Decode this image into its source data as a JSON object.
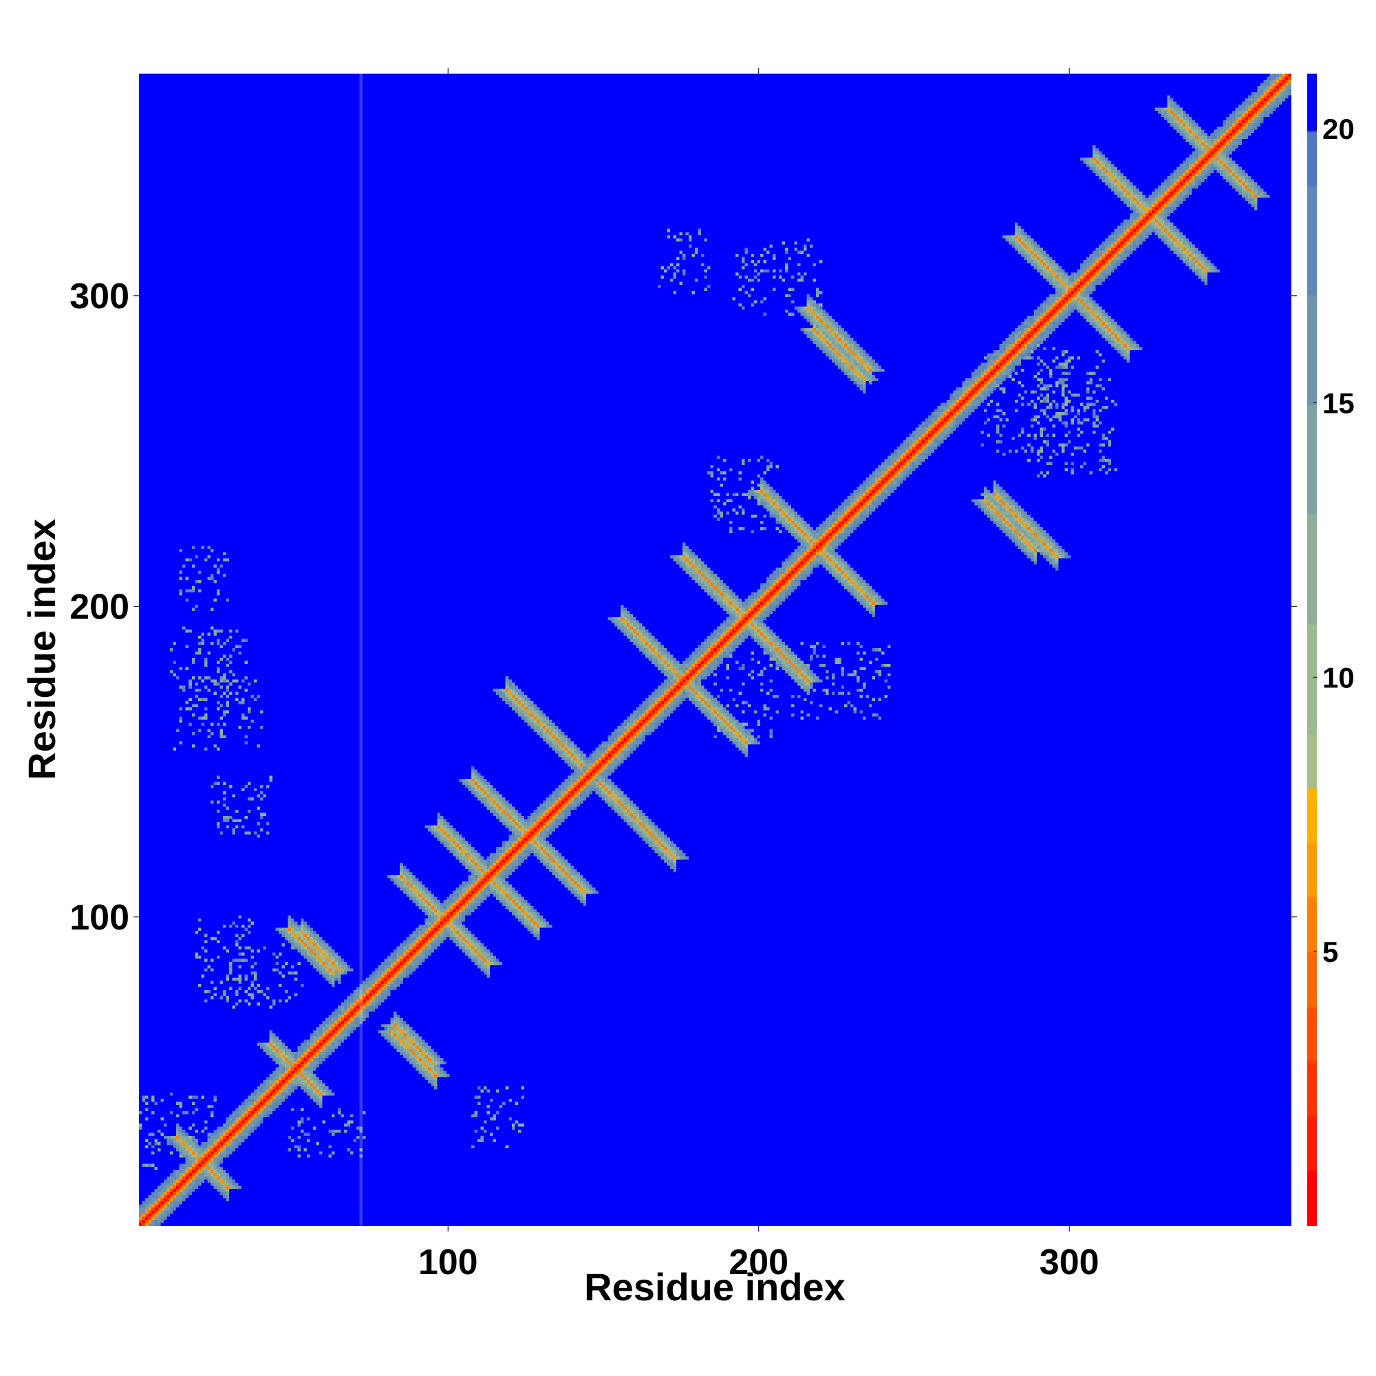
{
  "chart_data": {
    "type": "heatmap",
    "title": "",
    "xlabel": "Residue index",
    "ylabel": "Residue index",
    "xlim": [
      1,
      371
    ],
    "ylim": [
      1,
      371
    ],
    "xticks": [
      100,
      200,
      300
    ],
    "yticks": [
      100,
      200,
      300
    ],
    "xtick_labels": [
      "100",
      "200",
      "300"
    ],
    "ytick_labels": [
      "100",
      "200",
      "300"
    ],
    "colorbar": {
      "range": [
        0,
        21
      ],
      "ticks": [
        5,
        10,
        15,
        20
      ],
      "tick_labels": [
        "5",
        "10",
        "15",
        "20"
      ],
      "levels": [
        {
          "max": 1,
          "color": "#ff0000"
        },
        {
          "max": 2,
          "color": "#ff1a00"
        },
        {
          "max": 3,
          "color": "#ff3300"
        },
        {
          "max": 4,
          "color": "#ff4d00"
        },
        {
          "max": 5,
          "color": "#ff6600"
        },
        {
          "max": 6,
          "color": "#ff8000"
        },
        {
          "max": 7,
          "color": "#ff9a00"
        },
        {
          "max": 8,
          "color": "#ffb000"
        },
        {
          "max": 9,
          "color": "#a9bf8a"
        },
        {
          "max": 11,
          "color": "#9cb98f"
        },
        {
          "max": 13,
          "color": "#8eae98"
        },
        {
          "max": 15,
          "color": "#7fa2a3"
        },
        {
          "max": 17,
          "color": "#6f95ae"
        },
        {
          "max": 19,
          "color": "#5f87b9"
        },
        {
          "max": 20,
          "color": "#4f78c4"
        },
        {
          "max": 21,
          "color": "#0000ff"
        }
      ]
    },
    "background_color": "#0000ff",
    "highlight_line_x": 72,
    "description_of_pattern": {
      "diagonal": "distance 0 along i=j",
      "antiparallel_pairs": [
        {
          "center": [
            18,
            22
          ],
          "half_length": 6
        },
        {
          "center": [
            50,
            50
          ],
          "half_length": 8
        },
        {
          "center": [
            55,
            88
          ],
          "half_length": 7
        },
        {
          "center": [
            88,
            58
          ],
          "half_length": 6
        },
        {
          "center": [
            98,
            98
          ],
          "half_length": 14
        },
        {
          "center": [
            112,
            112
          ],
          "half_length": 16
        },
        {
          "center": [
            125,
            125
          ],
          "half_length": 18
        },
        {
          "center": [
            130,
            160
          ],
          "half_length": 10
        },
        {
          "center": [
            160,
            130
          ],
          "half_length": 12
        },
        {
          "center": [
            175,
            175
          ],
          "half_length": 20
        },
        {
          "center": [
            195,
            195
          ],
          "half_length": 20
        },
        {
          "center": [
            218,
            218
          ],
          "half_length": 18
        },
        {
          "center": [
            225,
            285
          ],
          "half_length": 10
        },
        {
          "center": [
            280,
            225
          ],
          "half_length": 8
        },
        {
          "center": [
            300,
            300
          ],
          "half_length": 18
        },
        {
          "center": [
            325,
            325
          ],
          "half_length": 18
        },
        {
          "center": [
            345,
            345
          ],
          "half_length": 14
        }
      ]
    }
  }
}
